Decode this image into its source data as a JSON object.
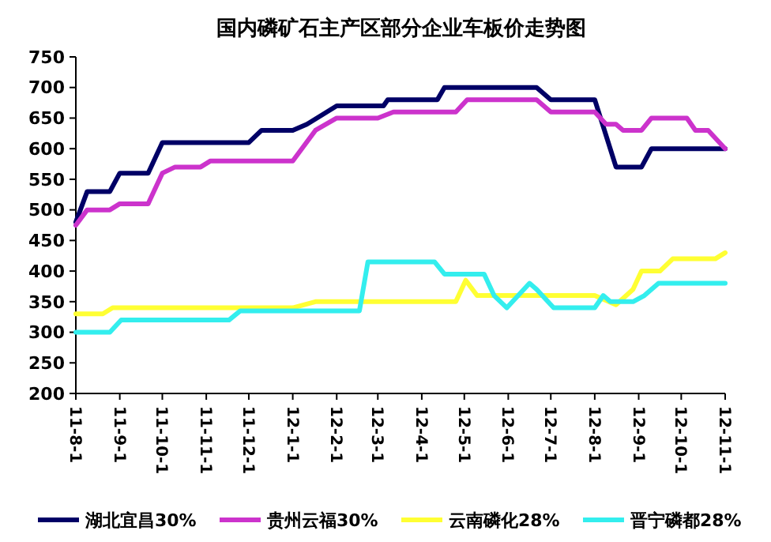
{
  "chart_data": {
    "type": "line",
    "title": "国内磷矿石主产区部分企业车板价走势图",
    "xlim": [
      "2011-08-01",
      "2012-11-01"
    ],
    "xticks": [
      {
        "value": "2011-08-01",
        "label": "11-8-1"
      },
      {
        "value": "2011-09-01",
        "label": "11-9-1"
      },
      {
        "value": "2011-10-01",
        "label": "11-10-1"
      },
      {
        "value": "2011-11-01",
        "label": "11-11-1"
      },
      {
        "value": "2011-12-01",
        "label": "11-12-1"
      },
      {
        "value": "2012-01-01",
        "label": "12-1-1"
      },
      {
        "value": "2012-02-01",
        "label": "12-2-1"
      },
      {
        "value": "2012-03-01",
        "label": "12-3-1"
      },
      {
        "value": "2012-04-01",
        "label": "12-4-1"
      },
      {
        "value": "2012-05-01",
        "label": "12-5-1"
      },
      {
        "value": "2012-06-01",
        "label": "12-6-1"
      },
      {
        "value": "2012-07-01",
        "label": "12-7-1"
      },
      {
        "value": "2012-08-01",
        "label": "12-8-1"
      },
      {
        "value": "2012-09-01",
        "label": "12-9-1"
      },
      {
        "value": "2012-10-01",
        "label": "12-10-1"
      },
      {
        "value": "2012-11-01",
        "label": "12-11-1"
      }
    ],
    "ylim": [
      200,
      750
    ],
    "yticks": [
      200,
      250,
      300,
      350,
      400,
      450,
      500,
      550,
      600,
      650,
      700,
      750
    ],
    "grid": false,
    "legend": "bottom",
    "marker": "none",
    "line_style": "solid",
    "series": [
      {
        "name": "湖北宜昌30%",
        "color": "#000066",
        "x": [
          "2011-08-01",
          "2011-08-09",
          "2011-08-25",
          "2011-09-01",
          "2011-09-21",
          "2011-10-01",
          "2011-12-01",
          "2011-12-10",
          "2012-01-01",
          "2012-01-11",
          "2012-01-18",
          "2012-02-01",
          "2012-03-05",
          "2012-03-08",
          "2012-04-12",
          "2012-04-17",
          "2012-06-21",
          "2012-07-01",
          "2012-08-01",
          "2012-08-16",
          "2012-09-03",
          "2012-09-10",
          "2012-11-01"
        ],
        "values": [
          480,
          530,
          530,
          560,
          560,
          610,
          610,
          630,
          630,
          640,
          650,
          670,
          670,
          680,
          680,
          700,
          700,
          680,
          680,
          570,
          570,
          600,
          600
        ]
      },
      {
        "name": "贵州云福30%",
        "color": "#cc33cc",
        "x": [
          "2011-08-01",
          "2011-08-09",
          "2011-08-25",
          "2011-09-01",
          "2011-09-21",
          "2011-10-01",
          "2011-10-10",
          "2011-10-28",
          "2011-11-04",
          "2012-01-01",
          "2012-01-17",
          "2012-02-01",
          "2012-03-01",
          "2012-03-12",
          "2012-04-25",
          "2012-05-03",
          "2012-06-21",
          "2012-07-01",
          "2012-08-01",
          "2012-08-09",
          "2012-08-16",
          "2012-08-21",
          "2012-09-03",
          "2012-09-10",
          "2012-10-05",
          "2012-10-11",
          "2012-10-20",
          "2012-11-01"
        ],
        "values": [
          475,
          500,
          500,
          510,
          510,
          560,
          570,
          570,
          580,
          580,
          630,
          650,
          650,
          660,
          660,
          680,
          680,
          660,
          660,
          640,
          640,
          630,
          630,
          650,
          650,
          630,
          630,
          600
        ]
      },
      {
        "name": "云南磷化28%",
        "color": "#ffff33",
        "x": [
          "2011-08-01",
          "2011-08-20",
          "2011-08-27",
          "2012-01-01",
          "2012-01-17",
          "2012-04-25",
          "2012-05-02",
          "2012-05-10",
          "2012-08-01",
          "2012-08-16",
          "2012-08-28",
          "2012-09-03",
          "2012-09-16",
          "2012-09-25",
          "2012-10-25",
          "2012-11-01"
        ],
        "values": [
          330,
          330,
          340,
          340,
          350,
          350,
          385,
          360,
          360,
          345,
          370,
          400,
          400,
          420,
          420,
          430
        ]
      },
      {
        "name": "晋宁磷都28%",
        "color": "#33eeee",
        "x": [
          "2011-08-01",
          "2011-08-25",
          "2011-09-02",
          "2011-11-17",
          "2011-11-25",
          "2012-02-17",
          "2012-02-23",
          "2012-04-10",
          "2012-04-17",
          "2012-05-15",
          "2012-05-22",
          "2012-05-31",
          "2012-06-16",
          "2012-06-21",
          "2012-07-03",
          "2012-08-01",
          "2012-08-07",
          "2012-08-12",
          "2012-08-28",
          "2012-09-05",
          "2012-09-15",
          "2012-11-01"
        ],
        "values": [
          300,
          300,
          320,
          320,
          335,
          335,
          415,
          415,
          395,
          395,
          360,
          340,
          380,
          370,
          340,
          340,
          360,
          350,
          350,
          360,
          380,
          380
        ]
      }
    ]
  }
}
